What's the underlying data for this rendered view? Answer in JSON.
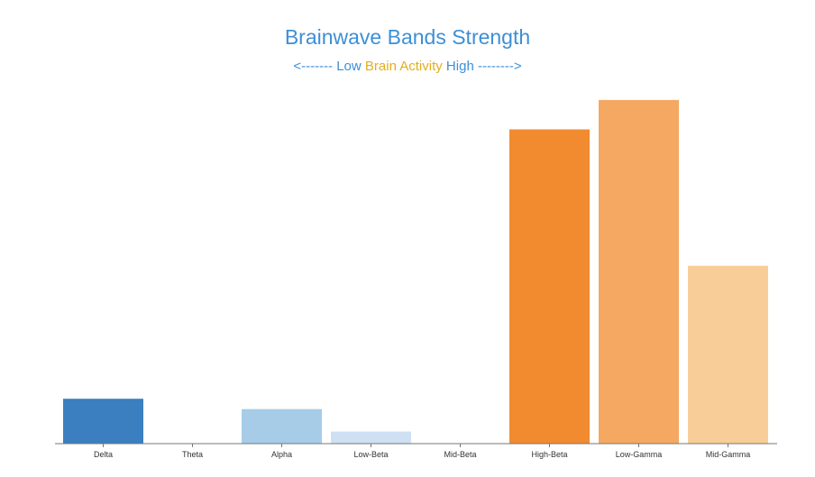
{
  "chart_data": {
    "type": "bar",
    "title": "Brainwave Bands Strength",
    "subtitle": {
      "left": "<------- Low ",
      "middle": "Brain Activity",
      "right": " High -------->"
    },
    "categories": [
      "Delta",
      "Theta",
      "Alpha",
      "Low-Beta",
      "Mid-Beta",
      "High-Beta",
      "Low-Gamma",
      "Mid-Gamma"
    ],
    "values": [
      13,
      0,
      10,
      3.5,
      0,
      91,
      99.5,
      51.5
    ],
    "colors": [
      "#3b7fc0",
      "#6fa8dc",
      "#a6cce8",
      "#cfe0f3",
      "#f7d6b0",
      "#f28b30",
      "#f4a862",
      "#f8cd98"
    ],
    "ylim": [
      0,
      100
    ],
    "xlabel": "",
    "ylabel": "",
    "grid": false,
    "legend": "none"
  }
}
